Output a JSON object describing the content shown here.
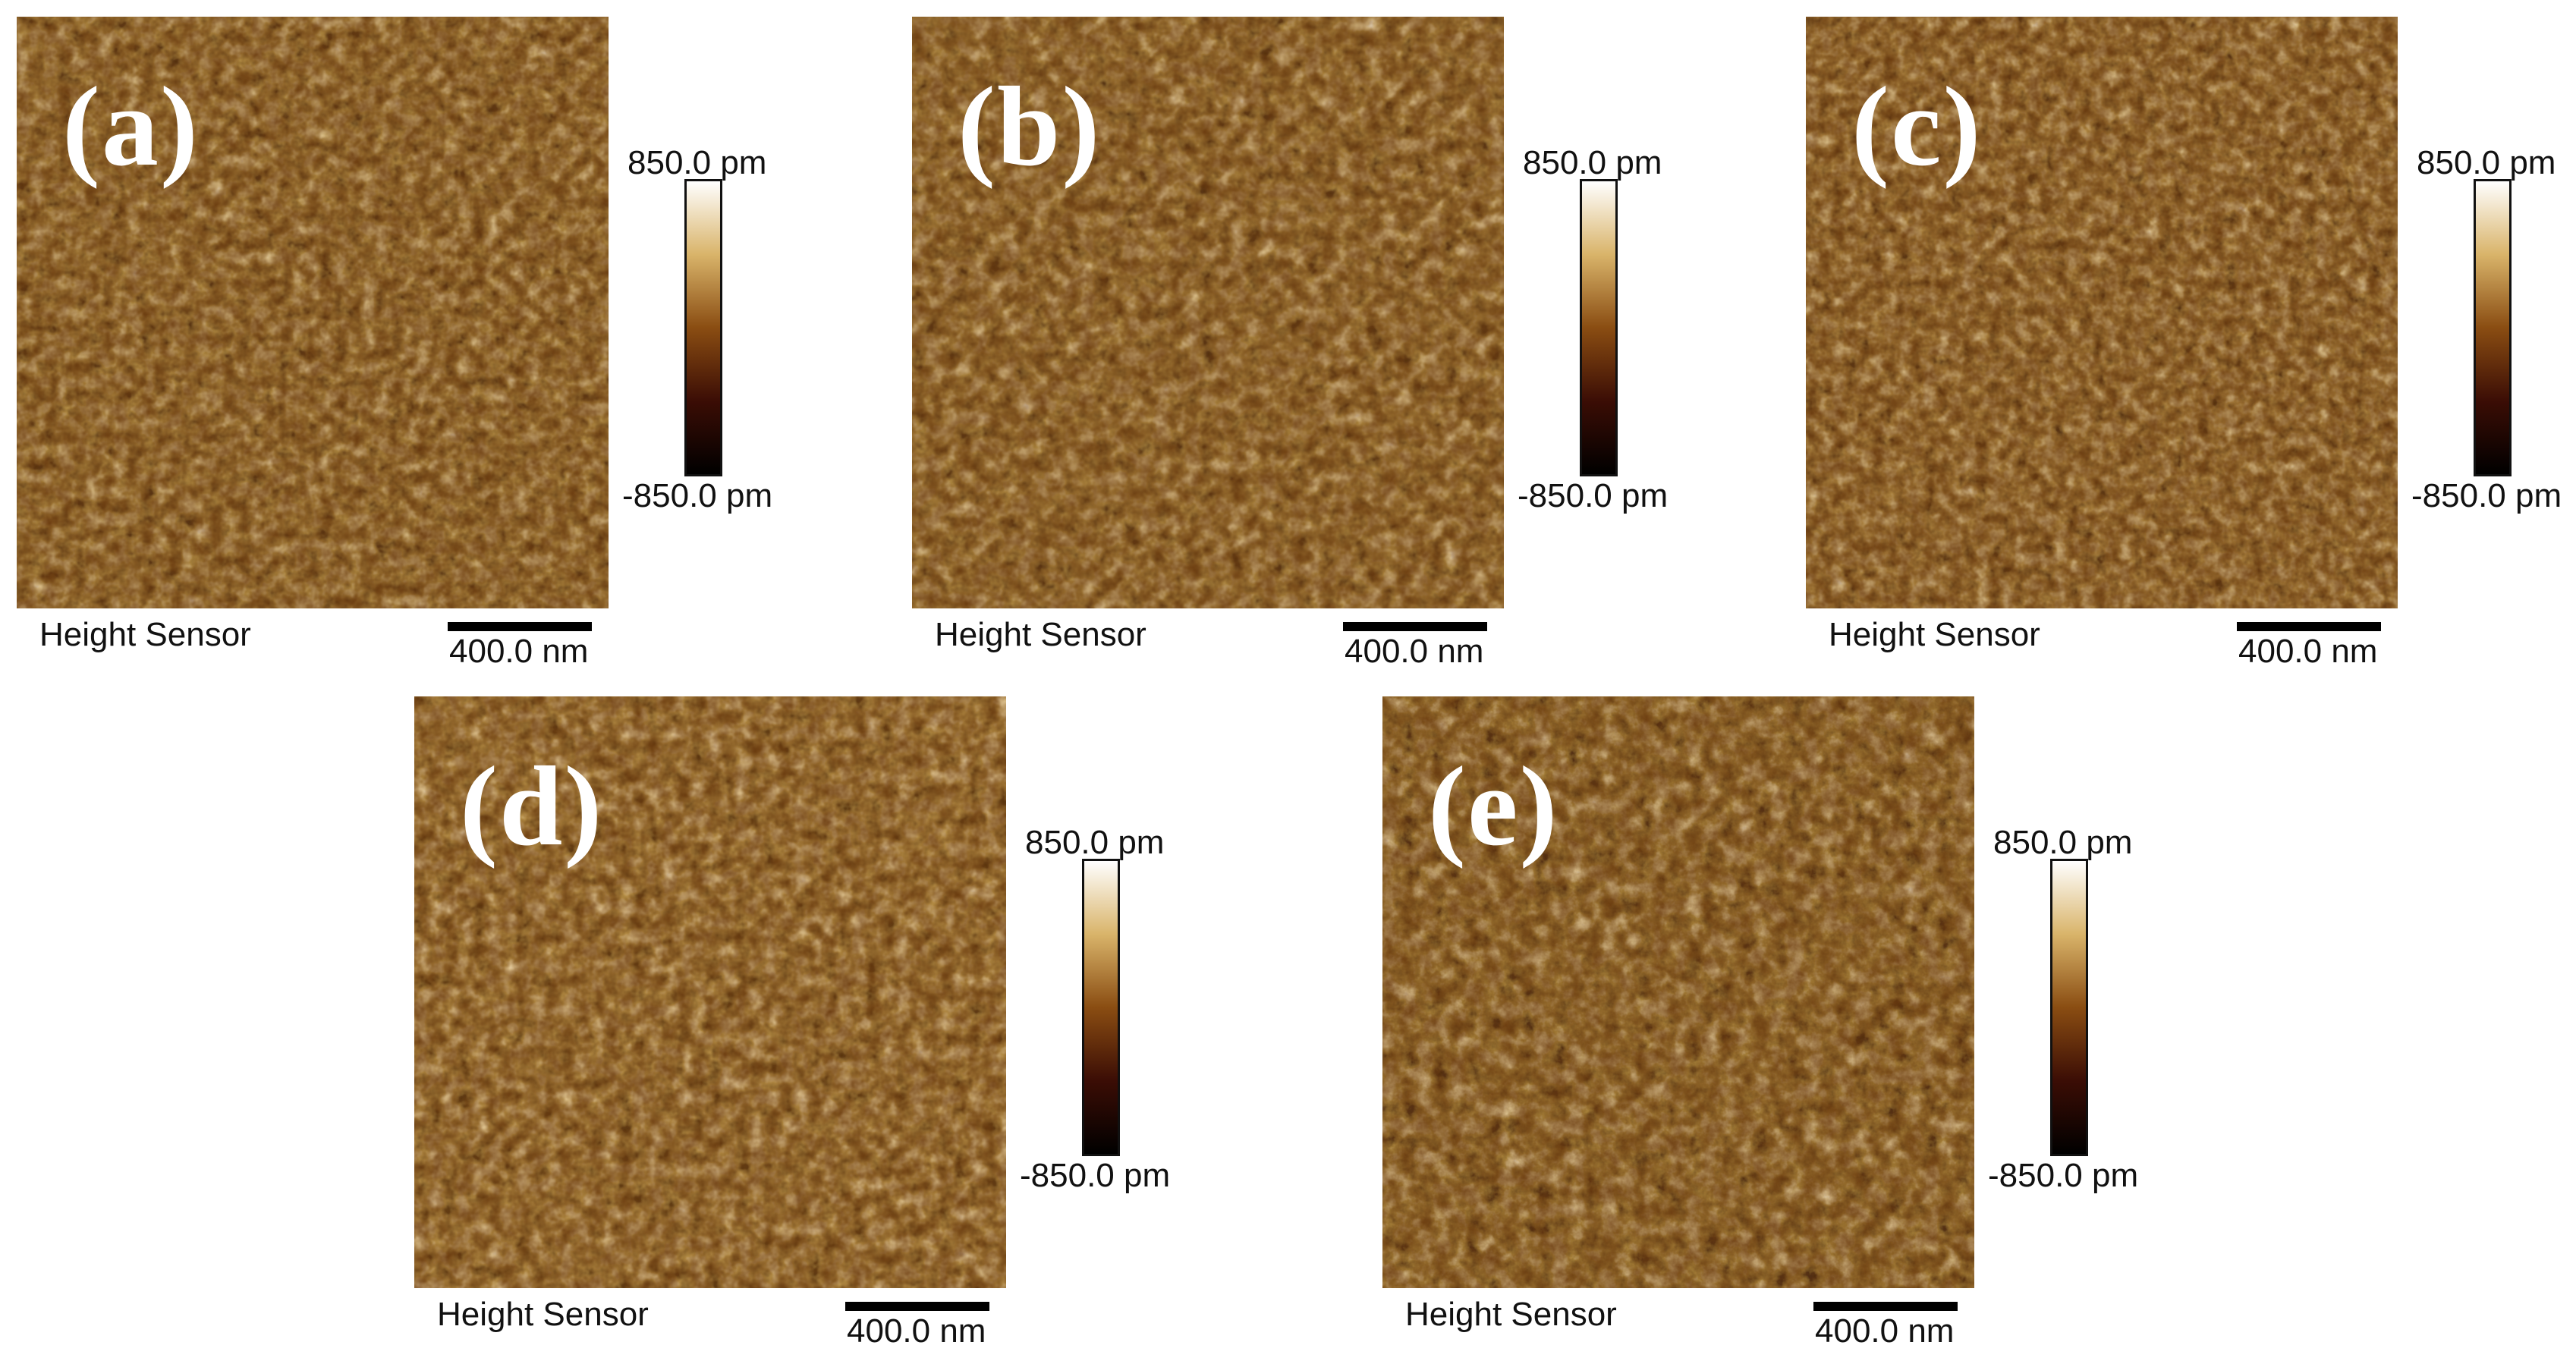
{
  "panels": [
    {
      "label": "(a)",
      "channel": "Height Sensor",
      "scalebar": "400.0 nm",
      "range_max": "850.0 pm",
      "range_min": "-850.0 pm"
    },
    {
      "label": "(b)",
      "channel": "Height Sensor",
      "scalebar": "400.0 nm",
      "range_max": "850.0 pm",
      "range_min": "-850.0 pm"
    },
    {
      "label": "(c)",
      "channel": "Height Sensor",
      "scalebar": "400.0 nm",
      "range_max": "850.0 pm",
      "range_min": "-850.0 pm"
    },
    {
      "label": "(d)",
      "channel": "Height Sensor",
      "scalebar": "400.0 nm",
      "range_max": "850.0 pm",
      "range_min": "-850.0 pm"
    },
    {
      "label": "(e)",
      "channel": "Height Sensor",
      "scalebar": "400.0 nm",
      "range_max": "850.0 pm",
      "range_min": "-850.0 pm"
    }
  ],
  "colormap": [
    "#000000",
    "#3b0d05",
    "#8a4d12",
    "#d9b46a",
    "#ffffff"
  ]
}
